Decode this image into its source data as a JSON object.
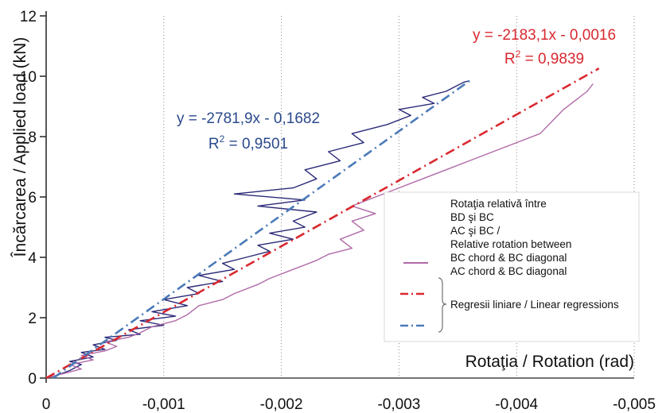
{
  "chart_data": {
    "type": "line",
    "xlabel": "Rotaţia / Rotation (rad)",
    "ylabel": "Încărcarea / Applied load (kN)",
    "xlim": [
      0,
      -0.005
    ],
    "ylim": [
      0,
      12
    ],
    "x_ticks": [
      "0",
      "-0,001",
      "-0,002",
      "-0,003",
      "-0,004",
      "-0,005"
    ],
    "y_ticks": [
      "0",
      "2",
      "4",
      "6",
      "8",
      "10",
      "12"
    ],
    "grid": "vertical dotted",
    "colors": {
      "bd_bc": "#2b2a78",
      "ac_bc": "#b06aa8",
      "reg_red": "#d9282f",
      "reg_blue": "#4a7ab8",
      "eq_blue": "#2b4a8c"
    },
    "annotations": [
      {
        "line1": "y = -2781,9x - 0,1682",
        "r2_base": "R",
        "r2_sup": "2",
        "r2_val": " = 0,9501",
        "color": "#2b4a8c"
      },
      {
        "line1": "y = -2183,1x - 0,0016",
        "r2_base": "R",
        "r2_sup": "2",
        "r2_val": " = 0,9839",
        "color": "#d9282f"
      }
    ],
    "legend": {
      "placement": "right",
      "lines": [
        "Rotaţia relativă între",
        "BD şi BC",
        "AC şi BC /",
        "Relative rotation between",
        "BC chord & BC diagonal",
        "AC chord & BC diagonal"
      ],
      "regression_label": "Regresii liniare / Linear regressions"
    },
    "series": [
      {
        "key": "bd_bc",
        "color": "#2b2a78",
        "points": [
          [
            0,
            0
          ],
          [
            -0.0001,
            0.1
          ],
          [
            -0.0002,
            0.25
          ],
          [
            -0.0003,
            0.45
          ],
          [
            -0.0002,
            0.55
          ],
          [
            -0.0004,
            0.7
          ],
          [
            -0.0003,
            0.85
          ],
          [
            -0.0005,
            0.95
          ],
          [
            -0.0004,
            1.1
          ],
          [
            -0.0006,
            1.25
          ],
          [
            -0.0005,
            1.35
          ],
          [
            -0.0008,
            1.45
          ],
          [
            -0.0007,
            1.6
          ],
          [
            -0.001,
            1.75
          ],
          [
            -0.0008,
            1.9
          ],
          [
            -0.0011,
            2.05
          ],
          [
            -0.0009,
            2.2
          ],
          [
            -0.0012,
            2.4
          ],
          [
            -0.001,
            2.6
          ],
          [
            -0.0013,
            2.8
          ],
          [
            -0.0012,
            3.0
          ],
          [
            -0.0015,
            3.2
          ],
          [
            -0.0013,
            3.4
          ],
          [
            -0.0016,
            3.6
          ],
          [
            -0.0015,
            3.8
          ],
          [
            -0.0017,
            4.0
          ],
          [
            -0.0019,
            4.2
          ],
          [
            -0.0018,
            4.4
          ],
          [
            -0.0021,
            4.6
          ],
          [
            -0.0019,
            4.8
          ],
          [
            -0.0022,
            5.0
          ],
          [
            -0.0021,
            5.2
          ],
          [
            -0.0023,
            5.5
          ],
          [
            -0.0018,
            5.7
          ],
          [
            -0.0022,
            5.9
          ],
          [
            -0.0016,
            6.1
          ],
          [
            -0.0021,
            6.3
          ],
          [
            -0.0023,
            6.6
          ],
          [
            -0.0022,
            6.9
          ],
          [
            -0.0025,
            7.2
          ],
          [
            -0.0024,
            7.5
          ],
          [
            -0.0027,
            7.8
          ],
          [
            -0.0026,
            8.1
          ],
          [
            -0.0029,
            8.4
          ],
          [
            -0.0031,
            8.7
          ],
          [
            -0.003,
            8.9
          ],
          [
            -0.0033,
            9.1
          ],
          [
            -0.0032,
            9.3
          ],
          [
            -0.0034,
            9.5
          ],
          [
            -0.0035,
            9.7
          ],
          [
            -0.00355,
            9.8
          ],
          [
            -0.0036,
            9.85
          ]
        ]
      },
      {
        "key": "ac_bc",
        "color": "#b06aa8",
        "points": [
          [
            0,
            0
          ],
          [
            -0.0001,
            0.1
          ],
          [
            -0.0003,
            0.3
          ],
          [
            -0.0002,
            0.45
          ],
          [
            -0.0004,
            0.6
          ],
          [
            -0.0003,
            0.75
          ],
          [
            -0.0005,
            0.9
          ],
          [
            -0.0006,
            1.05
          ],
          [
            -0.0005,
            1.2
          ],
          [
            -0.0007,
            1.35
          ],
          [
            -0.0008,
            1.5
          ],
          [
            -0.0009,
            1.7
          ],
          [
            -0.0011,
            1.9
          ],
          [
            -0.0012,
            2.1
          ],
          [
            -0.0013,
            2.4
          ],
          [
            -0.0015,
            2.6
          ],
          [
            -0.0016,
            2.8
          ],
          [
            -0.0018,
            3.1
          ],
          [
            -0.0019,
            3.3
          ],
          [
            -0.0021,
            3.6
          ],
          [
            -0.0023,
            3.9
          ],
          [
            -0.0024,
            4.1
          ],
          [
            -0.0026,
            4.3
          ],
          [
            -0.0025,
            4.6
          ],
          [
            -0.0027,
            4.9
          ],
          [
            -0.0026,
            5.2
          ],
          [
            -0.0028,
            5.45
          ],
          [
            -0.0026,
            5.7
          ],
          [
            -0.0028,
            6.0
          ],
          [
            -0.003,
            6.3
          ],
          [
            -0.0032,
            6.6
          ],
          [
            -0.0034,
            6.9
          ],
          [
            -0.0036,
            7.2
          ],
          [
            -0.0038,
            7.5
          ],
          [
            -0.004,
            7.8
          ],
          [
            -0.0042,
            8.1
          ],
          [
            -0.0043,
            8.5
          ],
          [
            -0.0044,
            8.9
          ],
          [
            -0.0045,
            9.2
          ],
          [
            -0.0046,
            9.5
          ],
          [
            -0.00465,
            9.75
          ]
        ]
      },
      {
        "key": "reg_red",
        "color": "#d9282f",
        "style": "dash-dot",
        "points": [
          [
            0,
            0
          ],
          [
            -0.0047,
            10.26
          ]
        ]
      },
      {
        "key": "reg_blue",
        "color": "#4a7ab8",
        "style": "dash-dot",
        "points": [
          [
            -6e-05,
            0
          ],
          [
            -0.0036,
            9.85
          ]
        ]
      }
    ]
  }
}
